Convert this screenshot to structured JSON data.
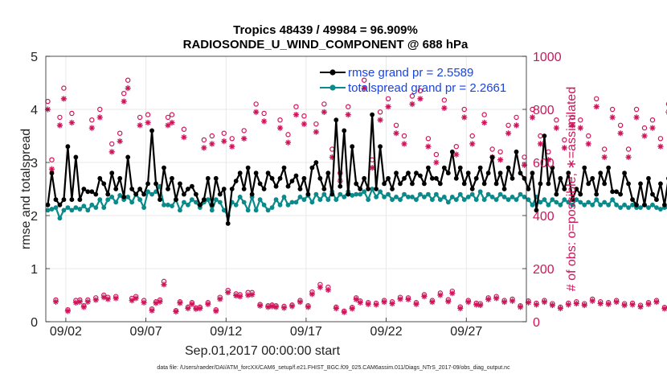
{
  "chart_data": {
    "type": "line",
    "title": "Tropics 48439 / 49984 = 96.909%",
    "subtitle": "RADIOSONDE_U_WIND_COMPONENT @ 688 hPa",
    "xlabel": "Sep.01,2017 00:00:00 start",
    "ylabel": "rmse and totalspread",
    "y2label": "# of obs: o=possible; ∗=assimilated",
    "footnote": "data file: /Users/raeder/DAI/ATM_forcXX/CAM6_setup/f.e21.FHIST_BGC.f09_025.CAM6assim.011/Diags_NTrS_2017-09/obs_diag_output.nc",
    "xlim": [
      0.75,
      30.75
    ],
    "ylim": [
      0,
      5
    ],
    "y2lim": [
      0,
      1000
    ],
    "x_ticks": [
      2,
      7,
      12,
      17,
      22,
      27
    ],
    "x_tick_labels": [
      "09/02",
      "09/07",
      "09/12",
      "09/17",
      "09/22",
      "09/27"
    ],
    "y_ticks": [
      0,
      1,
      2,
      3,
      4,
      5
    ],
    "y2_ticks": [
      0,
      200,
      400,
      600,
      800,
      1000
    ],
    "time_step_days": 0.25,
    "legend_position": "top-right",
    "series": [
      {
        "name": "rmse grand pr = 2.5589",
        "color": "#000000",
        "marker": "dot",
        "values": [
          2.2,
          2.8,
          2.3,
          2.2,
          2.3,
          3.3,
          2.3,
          3.1,
          2.3,
          2.5,
          2.45,
          2.45,
          2.4,
          2.7,
          2.6,
          2.4,
          2.8,
          2.5,
          2.7,
          2.35,
          3.1,
          2.5,
          2.4,
          2.5,
          2.4,
          2.6,
          3.6,
          2.6,
          2.3,
          2.9,
          2.5,
          2.7,
          2.3,
          2.6,
          2.4,
          2.5,
          2.55,
          2.4,
          2.2,
          2.3,
          2.7,
          2.2,
          2.7,
          2.4,
          2.5,
          1.85,
          2.5,
          2.65,
          2.8,
          2.5,
          2.9,
          2.4,
          2.8,
          2.6,
          2.5,
          2.8,
          2.7,
          2.55,
          2.7,
          2.9,
          2.55,
          2.65,
          2.75,
          2.5,
          2.7,
          2.4,
          2.9,
          3.0,
          2.7,
          2.5,
          2.8,
          2.4,
          3.8,
          2.55,
          3.6,
          2.4,
          3.3,
          2.6,
          2.5,
          2.7,
          2.5,
          3.9,
          2.5,
          3.3,
          2.6,
          2.7,
          2.5,
          2.8,
          2.6,
          2.7,
          2.8,
          2.6,
          2.8,
          2.75,
          2.6,
          2.9,
          2.7,
          2.7,
          2.6,
          2.9,
          2.8,
          3.2,
          2.7,
          2.9,
          2.6,
          2.8,
          2.5,
          2.7,
          2.9,
          2.6,
          2.8,
          3.1,
          2.6,
          2.8,
          2.5,
          2.9,
          2.7,
          3.2,
          2.8,
          2.7,
          2.5,
          2.8,
          2.1,
          2.6,
          3.5,
          2.6,
          2.9,
          2.4,
          2.7,
          2.5,
          2.8,
          2.3,
          2.5,
          2.4,
          2.9,
          2.6,
          2.7,
          2.4,
          2.8,
          2.6,
          2.9,
          2.45,
          2.45,
          2.4,
          2.8,
          2.6,
          2.3,
          2.2,
          2.6,
          2.2,
          2.7,
          2.4,
          2.3,
          2.6,
          2.2,
          2.7,
          2.3,
          2.2,
          2.2
        ]
      },
      {
        "name": "totalspread grand pr = 2.2661",
        "color": "#0a8a8a",
        "marker": "dot",
        "values": [
          2.1,
          2.12,
          2.15,
          1.95,
          2.1,
          2.15,
          2.1,
          2.15,
          2.12,
          2.18,
          2.1,
          2.2,
          2.15,
          2.3,
          2.15,
          2.3,
          2.35,
          2.25,
          2.38,
          2.3,
          2.35,
          2.25,
          2.4,
          2.3,
          2.15,
          2.45,
          2.4,
          2.45,
          2.55,
          2.2,
          2.2,
          2.18,
          2.3,
          2.1,
          2.25,
          2.2,
          2.3,
          2.25,
          2.15,
          2.25,
          2.3,
          2.1,
          2.3,
          2.25,
          2.1,
          2.0,
          2.25,
          2.2,
          2.35,
          2.25,
          2.1,
          2.35,
          2.1,
          2.3,
          2.2,
          2.1,
          2.15,
          2.3,
          2.2,
          2.35,
          2.2,
          2.25,
          2.25,
          2.35,
          2.3,
          2.38,
          2.25,
          2.4,
          2.3,
          2.4,
          2.3,
          2.45,
          2.3,
          2.4,
          2.35,
          2.45,
          2.38,
          2.4,
          2.4,
          2.45,
          2.3,
          2.5,
          2.35,
          2.45,
          2.35,
          2.4,
          2.3,
          2.35,
          2.3,
          2.4,
          2.35,
          2.35,
          2.3,
          2.4,
          2.35,
          2.4,
          2.3,
          2.4,
          2.3,
          2.35,
          2.25,
          2.35,
          2.3,
          2.4,
          2.3,
          2.35,
          2.4,
          2.3,
          2.45,
          2.3,
          2.4,
          2.35,
          2.3,
          2.4,
          2.35,
          2.3,
          2.35,
          2.3,
          2.4,
          2.35,
          2.3,
          2.2,
          2.35,
          2.25,
          2.3,
          2.2,
          2.3,
          2.25,
          2.2,
          2.3,
          2.25,
          2.2,
          2.3,
          2.25,
          2.2,
          2.25,
          2.2,
          2.3,
          2.2,
          2.25,
          2.2,
          2.3,
          2.2,
          2.15,
          2.2,
          2.15,
          2.2,
          2.15,
          2.15,
          2.2,
          2.15,
          2.2,
          2.15,
          2.12,
          2.15,
          2.15,
          2.18,
          2.15,
          2.15
        ]
      },
      {
        "name": "possible",
        "axis": "right",
        "color": "#d0145a",
        "marker": "o",
        "values": [
          830,
          610,
          82,
          770,
          880,
          45,
          785,
          80,
          82,
          60,
          82,
          760,
          90,
          800,
          100,
          92,
          670,
          95,
          710,
          860,
          910,
          88,
          95,
          770,
          80,
          780,
          48,
          75,
          82,
          152,
          770,
          780,
          42,
          75,
          725,
          55,
          72,
          52,
          55,
          685,
          72,
          700,
          45,
          92,
          710,
          118,
          690,
          105,
          102,
          720,
          110,
          110,
          820,
          65,
          785,
          60,
          63,
          60,
          760,
          58,
          705,
          63,
          810,
          80,
          775,
          60,
          112,
          745,
          140,
          820,
          130,
          650,
          55,
          560,
          40,
          810,
          54,
          90,
          78,
          910,
          72,
          610,
          70,
          790,
          80,
          840,
          75,
          740,
          92,
          700,
          90,
          850,
          72,
          870,
          102,
          690,
          80,
          630,
          108,
          835,
          83,
          115,
          660,
          56,
          800,
          80,
          700,
          70,
          68,
          780,
          90,
          650,
          95,
          640,
          80,
          740,
          85,
          770,
          60,
          620,
          78,
          800,
          70,
          700,
          80,
          640,
          68,
          760,
          55,
          685,
          70,
          770,
          75,
          760,
          68,
          700,
          85,
          840,
          75,
          650,
          72,
          800,
          80,
          740,
          68,
          650,
          70,
          800,
          62,
          730,
          72,
          760,
          80,
          690,
          54,
          820,
          66,
          720,
          70,
          740,
          62
        ]
      },
      {
        "name": "assimilated",
        "axis": "right",
        "color": "#d0145a",
        "marker": "*",
        "values": [
          800,
          575,
          75,
          740,
          840,
          40,
          750,
          72,
          75,
          55,
          75,
          730,
          82,
          770,
          92,
          85,
          640,
          88,
          680,
          830,
          880,
          80,
          88,
          740,
          72,
          750,
          42,
          70,
          75,
          140,
          740,
          750,
          38,
          70,
          695,
          50,
          66,
          48,
          50,
          655,
          66,
          670,
          40,
          85,
          680,
          110,
          660,
          98,
          95,
          690,
          100,
          102,
          790,
          60,
          755,
          55,
          58,
          55,
          730,
          52,
          675,
          58,
          780,
          74,
          745,
          55,
          104,
          715,
          130,
          790,
          120,
          620,
          50,
          530,
          36,
          780,
          49,
          84,
          72,
          880,
          66,
          580,
          64,
          760,
          74,
          810,
          68,
          710,
          85,
          670,
          84,
          820,
          66,
          840,
          95,
          660,
          74,
          600,
          100,
          805,
          76,
          107,
          630,
          50,
          770,
          74,
          670,
          64,
          62,
          750,
          84,
          620,
          88,
          610,
          74,
          710,
          78,
          740,
          55,
          590,
          72,
          770,
          64,
          670,
          74,
          610,
          62,
          730,
          50,
          655,
          64,
          740,
          68,
          730,
          62,
          670,
          78,
          810,
          68,
          620,
          66,
          770,
          74,
          710,
          62,
          620,
          64,
          770,
          56,
          700,
          66,
          730,
          74,
          660,
          49,
          790,
          60,
          690,
          64,
          710,
          56
        ]
      }
    ]
  }
}
